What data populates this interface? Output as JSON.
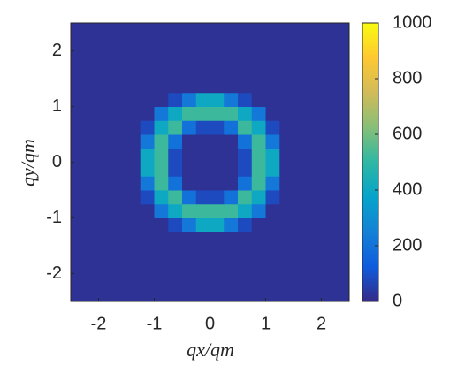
{
  "chart_data": {
    "type": "heatmap",
    "xlabel": "qx/qm",
    "ylabel": "qy/qm",
    "x": [
      -2.375,
      -2.125,
      -1.875,
      -1.625,
      -1.375,
      -1.125,
      -0.875,
      -0.625,
      -0.375,
      -0.125,
      0.125,
      0.375,
      0.625,
      0.875,
      1.125,
      1.375,
      1.625,
      1.875,
      2.125,
      2.375
    ],
    "y": [
      -2.375,
      -2.125,
      -1.875,
      -1.625,
      -1.375,
      -1.125,
      -0.875,
      -0.625,
      -0.375,
      -0.125,
      0.125,
      0.375,
      0.625,
      0.875,
      1.125,
      1.375,
      1.625,
      1.875,
      2.125,
      2.375
    ],
    "z": [
      [
        20,
        20,
        20,
        20,
        20,
        20,
        20,
        20,
        20,
        20,
        20,
        20,
        20,
        20,
        20,
        20,
        20,
        20,
        20,
        20
      ],
      [
        20,
        20,
        20,
        20,
        20,
        20,
        20,
        20,
        20,
        20,
        20,
        20,
        20,
        20,
        20,
        20,
        20,
        20,
        20,
        20
      ],
      [
        20,
        20,
        20,
        20,
        20,
        20,
        20,
        20,
        20,
        20,
        20,
        20,
        20,
        20,
        20,
        20,
        20,
        20,
        20,
        20
      ],
      [
        20,
        20,
        20,
        20,
        20,
        20,
        20,
        20,
        20,
        20,
        20,
        20,
        20,
        20,
        20,
        20,
        20,
        20,
        20,
        20
      ],
      [
        20,
        20,
        20,
        20,
        20,
        20,
        20,
        20,
        20,
        20,
        20,
        20,
        20,
        20,
        20,
        20,
        20,
        20,
        20,
        20
      ],
      [
        20,
        20,
        20,
        20,
        20,
        20,
        20,
        80,
        220,
        400,
        400,
        220,
        80,
        20,
        20,
        20,
        20,
        20,
        20,
        20
      ],
      [
        20,
        20,
        20,
        20,
        20,
        20,
        220,
        400,
        520,
        520,
        520,
        520,
        400,
        220,
        20,
        20,
        20,
        20,
        20,
        20
      ],
      [
        20,
        20,
        20,
        20,
        20,
        80,
        400,
        520,
        200,
        80,
        80,
        200,
        520,
        400,
        80,
        20,
        20,
        20,
        20,
        20
      ],
      [
        20,
        20,
        20,
        20,
        20,
        220,
        520,
        200,
        20,
        20,
        20,
        20,
        200,
        520,
        220,
        20,
        20,
        20,
        20,
        20
      ],
      [
        20,
        20,
        20,
        20,
        20,
        400,
        520,
        80,
        20,
        20,
        20,
        20,
        80,
        520,
        400,
        20,
        20,
        20,
        20,
        20
      ],
      [
        20,
        20,
        20,
        20,
        20,
        400,
        520,
        80,
        20,
        20,
        20,
        20,
        80,
        520,
        400,
        20,
        20,
        20,
        20,
        20
      ],
      [
        20,
        20,
        20,
        20,
        20,
        220,
        520,
        200,
        20,
        20,
        20,
        20,
        200,
        520,
        220,
        20,
        20,
        20,
        20,
        20
      ],
      [
        20,
        20,
        20,
        20,
        20,
        80,
        400,
        520,
        200,
        80,
        80,
        200,
        520,
        400,
        80,
        20,
        20,
        20,
        20,
        20
      ],
      [
        20,
        20,
        20,
        20,
        20,
        20,
        220,
        400,
        520,
        520,
        520,
        520,
        400,
        220,
        20,
        20,
        20,
        20,
        20,
        20
      ],
      [
        20,
        20,
        20,
        20,
        20,
        20,
        20,
        80,
        220,
        400,
        400,
        220,
        80,
        20,
        20,
        20,
        20,
        20,
        20,
        20
      ],
      [
        20,
        20,
        20,
        20,
        20,
        20,
        20,
        20,
        20,
        20,
        20,
        20,
        20,
        20,
        20,
        20,
        20,
        20,
        20,
        20
      ],
      [
        20,
        20,
        20,
        20,
        20,
        20,
        20,
        20,
        20,
        20,
        20,
        20,
        20,
        20,
        20,
        20,
        20,
        20,
        20,
        20
      ],
      [
        20,
        20,
        20,
        20,
        20,
        20,
        20,
        20,
        20,
        20,
        20,
        20,
        20,
        20,
        20,
        20,
        20,
        20,
        20,
        20
      ],
      [
        20,
        20,
        20,
        20,
        20,
        20,
        20,
        20,
        20,
        20,
        20,
        20,
        20,
        20,
        20,
        20,
        20,
        20,
        20,
        20
      ],
      [
        20,
        20,
        20,
        20,
        20,
        20,
        20,
        20,
        20,
        20,
        20,
        20,
        20,
        20,
        20,
        20,
        20,
        20,
        20,
        20
      ]
    ],
    "xlim": [
      -2.5,
      2.5
    ],
    "ylim": [
      -2.5,
      2.5
    ],
    "xticks": [
      -2,
      -1,
      0,
      1,
      2
    ],
    "yticks": [
      -2,
      -1,
      0,
      1,
      2
    ],
    "colormap": "parula",
    "clim": [
      0,
      1000
    ],
    "cticks": [
      0,
      200,
      400,
      600,
      800,
      1000
    ]
  }
}
